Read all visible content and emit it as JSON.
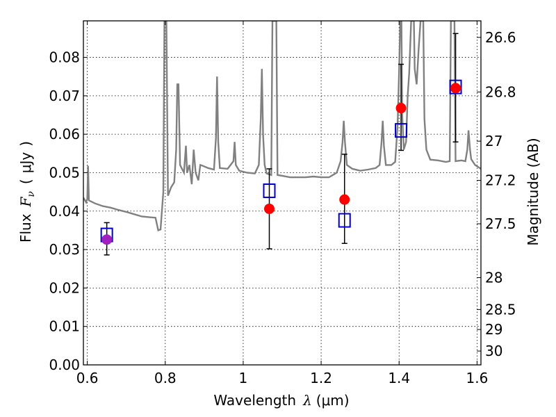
{
  "chart_data": {
    "type": "scatter",
    "xlabel": "Wavelength  λ (μm)",
    "ylabel": "Flux  F_ν  ( μJy )",
    "ylabel_parts": {
      "prefix": "Flux",
      "symbol": "F",
      "subscript": "ν",
      "paren_open": "(",
      "unit": "μJy",
      "paren_close": ")"
    },
    "xlabel_parts": {
      "prefix": "Wavelength",
      "symbol": "λ",
      "unit": "(μm)"
    },
    "ylabel_right": "Magnitude (AB)",
    "xlim": [
      0.59,
      1.61
    ],
    "ylim": [
      0.0,
      0.0895
    ],
    "grid": true,
    "x_ticks": [
      {
        "value": 0.6,
        "label": "0.6"
      },
      {
        "value": 0.8,
        "label": "0.8"
      },
      {
        "value": 1.0,
        "label": "1"
      },
      {
        "value": 1.2,
        "label": "1.2"
      },
      {
        "value": 1.4,
        "label": "1.4"
      },
      {
        "value": 1.6,
        "label": "1.6"
      }
    ],
    "y_ticks": [
      {
        "value": 0.0,
        "label": "0.00"
      },
      {
        "value": 0.01,
        "label": "0.01"
      },
      {
        "value": 0.02,
        "label": "0.02"
      },
      {
        "value": 0.03,
        "label": "0.03"
      },
      {
        "value": 0.04,
        "label": "0.04"
      },
      {
        "value": 0.05,
        "label": "0.05"
      },
      {
        "value": 0.06,
        "label": "0.06"
      },
      {
        "value": 0.07,
        "label": "0.07"
      },
      {
        "value": 0.08,
        "label": "0.08"
      }
    ],
    "right_ticks": [
      {
        "flux": 0.0852,
        "label": "26.6"
      },
      {
        "flux": 0.071,
        "label": "26.8"
      },
      {
        "flux": 0.0582,
        "label": "27"
      },
      {
        "flux": 0.048,
        "label": "27.2"
      },
      {
        "flux": 0.0367,
        "label": "27.5"
      },
      {
        "flux": 0.0227,
        "label": "28"
      },
      {
        "flux": 0.0144,
        "label": "28.5"
      },
      {
        "flux": 0.0092,
        "label": "29"
      },
      {
        "flux": 0.0036,
        "label": "30"
      }
    ],
    "spectrum": {
      "color": "#808080",
      "points": [
        [
          0.59,
          0.0435
        ],
        [
          0.597,
          0.0423
        ],
        [
          0.6,
          0.0432
        ],
        [
          0.602,
          0.0518
        ],
        [
          0.604,
          0.0428
        ],
        [
          0.61,
          0.0425
        ],
        [
          0.62,
          0.042
        ],
        [
          0.64,
          0.0413
        ],
        [
          0.66,
          0.0409
        ],
        [
          0.68,
          0.0403
        ],
        [
          0.7,
          0.0398
        ],
        [
          0.72,
          0.0392
        ],
        [
          0.74,
          0.0386
        ],
        [
          0.76,
          0.0384
        ],
        [
          0.775,
          0.0383
        ],
        [
          0.782,
          0.035
        ],
        [
          0.788,
          0.0352
        ],
        [
          0.795,
          0.045
        ],
        [
          0.798,
          0.0895
        ],
        [
          0.803,
          0.0895
        ],
        [
          0.807,
          0.044
        ],
        [
          0.815,
          0.0462
        ],
        [
          0.823,
          0.0475
        ],
        [
          0.828,
          0.056
        ],
        [
          0.831,
          0.073
        ],
        [
          0.834,
          0.073
        ],
        [
          0.838,
          0.052
        ],
        [
          0.848,
          0.05
        ],
        [
          0.853,
          0.057
        ],
        [
          0.856,
          0.05
        ],
        [
          0.862,
          0.052
        ],
        [
          0.868,
          0.047
        ],
        [
          0.873,
          0.056
        ],
        [
          0.878,
          0.05
        ],
        [
          0.885,
          0.048
        ],
        [
          0.89,
          0.052
        ],
        [
          0.896,
          0.0518
        ],
        [
          0.91,
          0.0512
        ],
        [
          0.925,
          0.0508
        ],
        [
          0.93,
          0.059
        ],
        [
          0.933,
          0.075
        ],
        [
          0.936,
          0.058
        ],
        [
          0.94,
          0.0512
        ],
        [
          0.96,
          0.051
        ],
        [
          0.975,
          0.053
        ],
        [
          0.978,
          0.058
        ],
        [
          0.981,
          0.052
        ],
        [
          0.99,
          0.0505
        ],
        [
          1.01,
          0.05
        ],
        [
          1.03,
          0.0498
        ],
        [
          1.04,
          0.052
        ],
        [
          1.045,
          0.064
        ],
        [
          1.048,
          0.077
        ],
        [
          1.051,
          0.06
        ],
        [
          1.055,
          0.052
        ],
        [
          1.06,
          0.0498
        ],
        [
          1.072,
          0.0494
        ],
        [
          1.075,
          0.0895
        ],
        [
          1.085,
          0.0895
        ],
        [
          1.088,
          0.0494
        ],
        [
          1.1,
          0.0492
        ],
        [
          1.12,
          0.0488
        ],
        [
          1.14,
          0.0488
        ],
        [
          1.16,
          0.0488
        ],
        [
          1.18,
          0.049
        ],
        [
          1.2,
          0.0488
        ],
        [
          1.22,
          0.0488
        ],
        [
          1.23,
          0.0494
        ],
        [
          1.24,
          0.05
        ],
        [
          1.25,
          0.053
        ],
        [
          1.255,
          0.058
        ],
        [
          1.258,
          0.0635
        ],
        [
          1.261,
          0.058
        ],
        [
          1.266,
          0.052
        ],
        [
          1.28,
          0.051
        ],
        [
          1.3,
          0.0505
        ],
        [
          1.32,
          0.0508
        ],
        [
          1.34,
          0.0512
        ],
        [
          1.35,
          0.052
        ],
        [
          1.355,
          0.058
        ],
        [
          1.358,
          0.0635
        ],
        [
          1.361,
          0.057
        ],
        [
          1.366,
          0.052
        ],
        [
          1.38,
          0.052
        ],
        [
          1.39,
          0.0528
        ],
        [
          1.396,
          0.062
        ],
        [
          1.4,
          0.076
        ],
        [
          1.403,
          0.0895
        ],
        [
          1.406,
          0.0895
        ],
        [
          1.408,
          0.065
        ],
        [
          1.412,
          0.056
        ],
        [
          1.418,
          0.058
        ],
        [
          1.422,
          0.07
        ],
        [
          1.426,
          0.076
        ],
        [
          1.431,
          0.0895
        ],
        [
          1.438,
          0.0895
        ],
        [
          1.44,
          0.077
        ],
        [
          1.445,
          0.073
        ],
        [
          1.45,
          0.082
        ],
        [
          1.455,
          0.0895
        ],
        [
          1.462,
          0.0895
        ],
        [
          1.465,
          0.064
        ],
        [
          1.47,
          0.056
        ],
        [
          1.48,
          0.0534
        ],
        [
          1.5,
          0.0532
        ],
        [
          1.52,
          0.0528
        ],
        [
          1.53,
          0.053
        ],
        [
          1.533,
          0.0895
        ],
        [
          1.542,
          0.0895
        ],
        [
          1.545,
          0.053
        ],
        [
          1.56,
          0.0532
        ],
        [
          1.57,
          0.053
        ],
        [
          1.575,
          0.056
        ],
        [
          1.578,
          0.061
        ],
        [
          1.582,
          0.056
        ],
        [
          1.585,
          0.0535
        ],
        [
          1.595,
          0.052
        ],
        [
          1.61,
          0.051
        ]
      ]
    },
    "series": [
      {
        "marker": "open-square",
        "color": "#0000cc",
        "points": [
          [
            0.65,
            0.0338
          ],
          [
            1.067,
            0.0453
          ],
          [
            1.26,
            0.0376
          ],
          [
            1.405,
            0.061
          ],
          [
            1.545,
            0.0723
          ]
        ]
      },
      {
        "marker": "filled-circle",
        "color": "#ff0000",
        "points": [
          [
            1.067,
            0.0406
          ],
          [
            1.26,
            0.043
          ],
          [
            1.405,
            0.0668
          ],
          [
            1.545,
            0.072
          ]
        ],
        "error_low": [
          0.0302,
          0.0316,
          0.0558,
          0.058
        ],
        "error_high": [
          0.051,
          0.0548,
          0.0782,
          0.0862
        ]
      },
      {
        "marker": "filled-circle",
        "color": "#a020c0",
        "points": [
          [
            0.65,
            0.0326
          ]
        ],
        "error_low": [
          0.0286
        ],
        "error_high": [
          0.037
        ]
      }
    ]
  }
}
